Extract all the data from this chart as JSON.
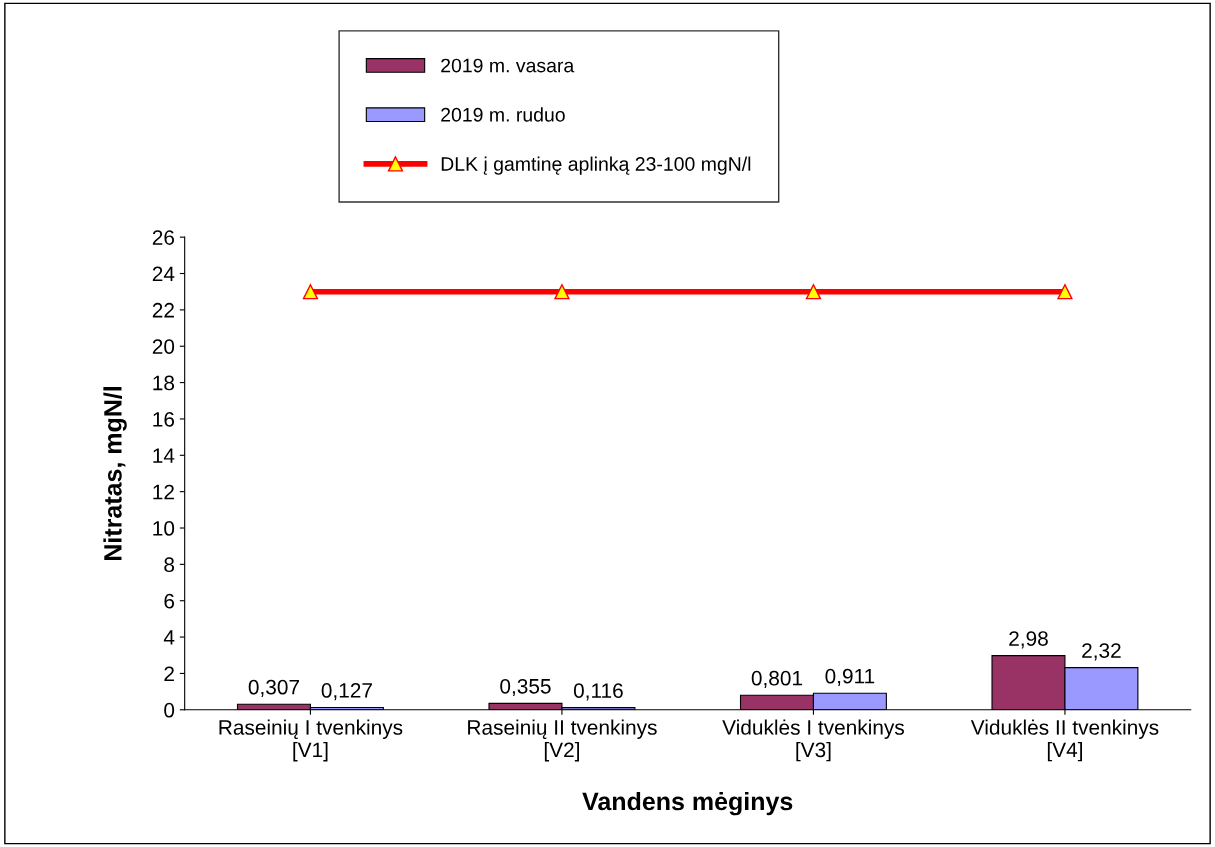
{
  "chart_data": {
    "type": "bar",
    "xlabel": "Vandens mėginys",
    "ylabel": "Nitratas, mgN/l",
    "categories": [
      "Raseinių I tvenkinys\n[V1]",
      "Raseinių II tvenkinys\n[V2]",
      "Viduklės I tvenkinys\n[V3]",
      "Viduklės II tvenkinys\n[V4]"
    ],
    "series": [
      {
        "name": "2019 m. vasara",
        "color": "#993366",
        "values": [
          0.307,
          0.355,
          0.801,
          2.98
        ],
        "value_labels": [
          "0,307",
          "0,355",
          "0,801",
          "2,98"
        ]
      },
      {
        "name": "2019 m. ruduo",
        "color": "#9999ff",
        "values": [
          0.127,
          0.116,
          0.911,
          2.32
        ],
        "value_labels": [
          "0,127",
          "0,116",
          "0,911",
          "2,32"
        ]
      },
      {
        "name": "DLK į gamtinę aplinką 23-100 mgN/l",
        "type": "line",
        "color": "#ff0000",
        "marker": "triangle",
        "values": [
          23,
          23,
          23,
          23
        ]
      }
    ],
    "ylim": [
      0,
      26
    ],
    "yticks": [
      0,
      2,
      4,
      6,
      8,
      10,
      12,
      14,
      16,
      18,
      20,
      22,
      24,
      26
    ],
    "grid": false,
    "legend": "top"
  }
}
